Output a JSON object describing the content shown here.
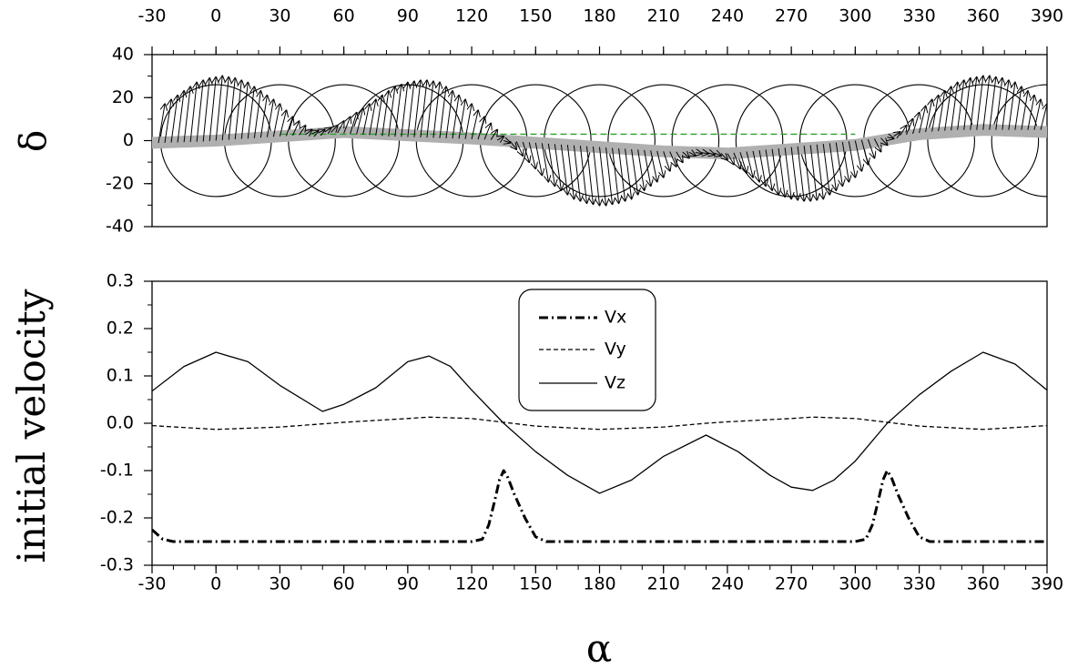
{
  "chart_data": [
    {
      "type": "line",
      "panel": "top",
      "ylabel": "δ",
      "x_top_ticks": [
        "-30",
        "0",
        "30",
        "60",
        "90",
        "120",
        "150",
        "180",
        "210",
        "240",
        "270",
        "300",
        "330",
        "360",
        "390"
      ],
      "y_ticks": [
        "40",
        "20",
        "0",
        "-20",
        "-40"
      ],
      "xlim": [
        -30,
        390
      ],
      "ylim": [
        -40,
        40
      ],
      "circle_centers": [
        0,
        30,
        60,
        90,
        120,
        150,
        180,
        210,
        240,
        270,
        300,
        330,
        360,
        390
      ],
      "circle_radius_deg": 26,
      "band": {
        "x": [
          -30,
          0,
          60,
          120,
          150,
          180,
          210,
          240,
          270,
          300,
          330,
          360,
          390
        ],
        "y": [
          -1,
          0,
          4,
          1,
          -1,
          -3,
          -5,
          -6,
          -4,
          -2,
          3,
          5,
          4
        ]
      },
      "dashed_line": {
        "x": [
          30,
          300
        ],
        "y": [
          3,
          3
        ],
        "color": "#2ca02c"
      },
      "arrows": {
        "dx": 3,
        "x": [
          -27,
          -24,
          -21,
          -18,
          -15,
          -12,
          -9,
          -6,
          -3,
          0,
          3,
          6,
          9,
          12,
          15,
          18,
          21,
          24,
          27,
          30,
          33,
          36,
          39,
          42,
          45,
          48,
          51,
          54,
          57,
          60,
          63,
          66,
          69,
          72,
          75,
          78,
          81,
          84,
          87,
          90,
          93,
          96,
          99,
          102,
          105,
          108,
          111,
          114,
          117,
          120,
          123,
          126,
          129,
          132,
          135,
          138,
          141,
          144,
          147,
          150,
          153,
          156,
          159,
          162,
          165,
          168,
          171,
          174,
          177,
          180,
          183,
          186,
          189,
          192,
          195,
          198,
          201,
          204,
          207,
          210,
          213,
          216,
          219,
          222,
          225,
          228,
          231,
          234,
          237,
          240,
          243,
          246,
          249,
          252,
          255,
          258,
          261,
          264,
          267,
          270,
          273,
          276,
          279,
          282,
          285,
          288,
          291,
          294,
          297,
          300,
          303,
          306,
          309,
          312,
          315,
          318,
          321,
          324,
          327,
          330,
          333,
          336,
          339,
          342,
          345,
          348,
          351,
          354,
          357,
          360,
          363,
          366,
          369,
          372,
          375,
          378,
          381,
          384,
          387
        ],
        "base": [
          -1.1,
          -1.0,
          -0.9,
          -0.8,
          -0.7,
          -0.6,
          -0.5,
          -0.4,
          -0.2,
          0.0,
          0.2,
          0.4,
          0.6,
          0.8,
          1.0,
          1.2,
          1.4,
          1.6,
          1.8,
          2.0,
          2.2,
          2.4,
          2.6,
          2.8,
          3.2,
          3.6,
          4.0,
          3.8,
          3.6,
          3.4,
          3.2,
          3.0,
          2.8,
          2.6,
          2.4,
          2.2,
          2.0,
          1.9,
          1.8,
          1.7,
          1.6,
          1.5,
          1.4,
          1.3,
          1.2,
          1.1,
          1.0,
          0.9,
          0.8,
          0.7,
          0.6,
          0.5,
          0.4,
          0.2,
          0.0,
          -0.2,
          -0.4,
          -0.6,
          -0.8,
          -1.0,
          -1.2,
          -1.4,
          -1.6,
          -1.8,
          -2.0,
          -2.2,
          -2.4,
          -2.6,
          -2.8,
          -3.0,
          -3.2,
          -3.4,
          -3.6,
          -3.8,
          -4.0,
          -4.2,
          -4.4,
          -4.6,
          -4.8,
          -5.0,
          -5.1,
          -5.2,
          -5.3,
          -5.4,
          -5.5,
          -5.6,
          -5.7,
          -5.8,
          -5.9,
          -6.0,
          -5.7,
          -5.4,
          -5.1,
          -4.8,
          -4.5,
          -4.2,
          -3.9,
          -3.6,
          -3.3,
          -3.0,
          -2.7,
          -2.4,
          -2.1,
          -1.8,
          -1.5,
          -1.2,
          -0.9,
          -0.6,
          -0.3,
          0.0,
          0.3,
          0.6,
          0.9,
          1.2,
          1.6,
          2.0,
          2.4,
          2.8,
          3.2,
          3.6,
          4.0,
          4.2,
          4.4,
          4.6,
          4.8,
          5.0,
          5.0,
          5.0,
          5.0,
          5.0,
          5.0,
          5.0,
          5.0,
          5.0,
          5.0,
          5.0,
          5.0,
          5.0,
          5.0
        ],
        "tip": [
          17,
          19,
          21,
          23,
          25,
          27,
          28,
          29,
          29.5,
          30,
          29.5,
          29,
          28,
          27,
          25,
          23,
          21,
          19,
          17,
          14,
          11,
          9,
          7,
          5,
          4.5,
          5,
          6,
          7,
          9,
          11,
          13,
          15,
          17,
          19,
          21,
          23,
          25,
          26,
          27,
          27.5,
          28,
          28,
          27.5,
          27,
          25,
          23,
          21,
          19,
          17,
          14,
          11,
          8,
          5,
          2,
          -1,
          -4,
          -7,
          -10,
          -13,
          -16,
          -19,
          -21,
          -23,
          -25,
          -27,
          -28,
          -29,
          -29.5,
          -30,
          -30,
          -29.5,
          -29,
          -28,
          -27,
          -25,
          -23,
          -21,
          -19,
          -17,
          -14,
          -12,
          -10,
          -8,
          -7,
          -6,
          -6,
          -6.5,
          -7,
          -9,
          -11,
          -13,
          -15,
          -17,
          -19,
          -21,
          -23,
          -25,
          -26,
          -27,
          -27.5,
          -28,
          -28,
          -27.5,
          -27,
          -25,
          -23,
          -21,
          -19,
          -17,
          -14,
          -11,
          -8,
          -5,
          -2,
          1,
          4,
          7,
          10,
          13,
          16,
          19,
          21,
          23,
          25,
          27,
          28,
          29,
          29.5,
          30,
          30,
          29.5,
          29,
          28,
          27,
          25,
          23,
          21,
          19,
          17,
          14
        ]
      }
    },
    {
      "type": "line",
      "panel": "bottom",
      "xlabel": "α",
      "ylabel": "initial velocity",
      "x_ticks": [
        "-30",
        "0",
        "30",
        "60",
        "90",
        "120",
        "150",
        "180",
        "210",
        "240",
        "270",
        "300",
        "330",
        "360",
        "390"
      ],
      "y_ticks": [
        "0.3",
        "0.2",
        "0.1",
        "0.0",
        "-0.1",
        "-0.2",
        "-0.3"
      ],
      "xlim": [
        -30,
        390
      ],
      "ylim": [
        -0.3,
        0.3
      ],
      "legend": {
        "entries": [
          "Vx",
          "Vy",
          "Vz"
        ],
        "placement": "top-center"
      },
      "series": [
        {
          "name": "Vx",
          "style": "dashdot",
          "x": [
            -30,
            -25,
            -20,
            120,
            125,
            128,
            131,
            133,
            135,
            137,
            140,
            145,
            150,
            155,
            300,
            305,
            308,
            311,
            313,
            315,
            317,
            320,
            325,
            330,
            335,
            390
          ],
          "y": [
            -0.225,
            -0.245,
            -0.25,
            -0.25,
            -0.245,
            -0.215,
            -0.16,
            -0.12,
            -0.1,
            -0.115,
            -0.15,
            -0.2,
            -0.24,
            -0.25,
            -0.25,
            -0.245,
            -0.215,
            -0.16,
            -0.12,
            -0.1,
            -0.115,
            -0.15,
            -0.2,
            -0.24,
            -0.25,
            -0.25
          ]
        },
        {
          "name": "Vy",
          "style": "dashed",
          "x": [
            -30,
            0,
            30,
            60,
            90,
            100,
            120,
            135,
            150,
            180,
            210,
            230,
            240,
            270,
            280,
            300,
            315,
            330,
            360,
            390
          ],
          "y": [
            -0.005,
            -0.013,
            -0.008,
            0.002,
            0.01,
            0.013,
            0.01,
            0.002,
            -0.006,
            -0.013,
            -0.008,
            0.0,
            0.003,
            0.01,
            0.013,
            0.01,
            0.002,
            -0.006,
            -0.013,
            -0.005
          ]
        },
        {
          "name": "Vz",
          "style": "solid",
          "x": [
            -30,
            -15,
            0,
            15,
            30,
            50,
            60,
            75,
            90,
            100,
            110,
            120,
            135,
            150,
            165,
            180,
            195,
            210,
            230,
            245,
            260,
            270,
            280,
            290,
            300,
            315,
            330,
            345,
            360,
            375,
            390
          ],
          "y": [
            0.068,
            0.12,
            0.15,
            0.13,
            0.08,
            0.025,
            0.04,
            0.075,
            0.13,
            0.142,
            0.12,
            0.07,
            0.0,
            -0.06,
            -0.11,
            -0.148,
            -0.12,
            -0.07,
            -0.025,
            -0.06,
            -0.11,
            -0.135,
            -0.142,
            -0.12,
            -0.08,
            0.0,
            0.06,
            0.11,
            0.15,
            0.125,
            0.07
          ]
        }
      ]
    }
  ]
}
